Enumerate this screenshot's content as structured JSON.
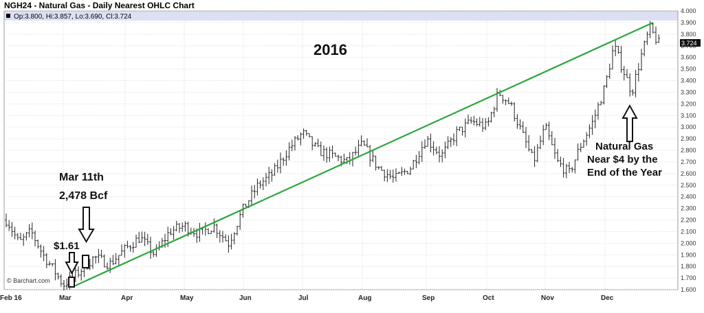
{
  "chart_data": {
    "type": "ohlc",
    "title": "NGH24 - Natural Gas - Daily Nearest OHLC Chart",
    "ohlc_label": "Op:3.800, Hi:3.857, Lo:3.690, Cl:3.724",
    "last_price": "3.724",
    "credit": "© Barchart.com",
    "ylim": [
      1.6,
      4.0
    ],
    "y_ticks": [
      "1.600",
      "1.700",
      "1.800",
      "1.900",
      "2.000",
      "2.100",
      "2.200",
      "2.300",
      "2.400",
      "2.500",
      "2.600",
      "2.700",
      "2.800",
      "2.900",
      "3.000",
      "3.100",
      "3.200",
      "3.300",
      "3.400",
      "3.500",
      "3.600",
      "3.700",
      "3.800",
      "3.900",
      "4.000"
    ],
    "x_labels": [
      "Feb 16",
      "Mar",
      "Apr",
      "May",
      "Jun",
      "Jul",
      "Aug",
      "Sep",
      "Oct",
      "Nov",
      "Dec"
    ],
    "trend_key_points": [
      {
        "label": "Mar",
        "value": 1.62
      },
      {
        "label": "Jun",
        "value": 2.3
      },
      {
        "label": "Aug",
        "value": 2.78
      },
      {
        "label": "Oct",
        "value": 3.35
      },
      {
        "label": "Dec",
        "value": 3.75
      },
      {
        "label": "end",
        "value": 3.9
      }
    ],
    "price_path": [
      {
        "label": "Feb 16",
        "value": 2.2
      },
      {
        "label": "Feb",
        "value": 2.0
      },
      {
        "label": "Feb",
        "value": 2.1
      },
      {
        "label": "Feb",
        "value": 1.9
      },
      {
        "label": "Feb",
        "value": 1.75
      },
      {
        "label": "Mar",
        "value": 1.64
      },
      {
        "label": "Mar",
        "value": 1.75
      },
      {
        "label": "Mar",
        "value": 1.88
      },
      {
        "label": "Mar",
        "value": 1.82
      },
      {
        "label": "Apr",
        "value": 1.95
      },
      {
        "label": "Apr",
        "value": 2.05
      },
      {
        "label": "Apr",
        "value": 1.9
      },
      {
        "label": "Apr",
        "value": 2.1
      },
      {
        "label": "May",
        "value": 2.15
      },
      {
        "label": "May",
        "value": 2.08
      },
      {
        "label": "May",
        "value": 2.15
      },
      {
        "label": "May",
        "value": 2.0
      },
      {
        "label": "Jun",
        "value": 2.3
      },
      {
        "label": "Jun",
        "value": 2.5
      },
      {
        "label": "Jun",
        "value": 2.6
      },
      {
        "label": "Jun",
        "value": 2.8
      },
      {
        "label": "Jul",
        "value": 2.95
      },
      {
        "label": "Jul",
        "value": 2.8
      },
      {
        "label": "Jul",
        "value": 2.75
      },
      {
        "label": "Jul",
        "value": 2.7
      },
      {
        "label": "Aug",
        "value": 2.85
      },
      {
        "label": "Aug",
        "value": 2.65
      },
      {
        "label": "Aug",
        "value": 2.55
      },
      {
        "label": "Aug",
        "value": 2.65
      },
      {
        "label": "Sep",
        "value": 2.9
      },
      {
        "label": "Sep",
        "value": 2.75
      },
      {
        "label": "Sep",
        "value": 2.95
      },
      {
        "label": "Sep",
        "value": 3.05
      },
      {
        "label": "Oct",
        "value": 3.0
      },
      {
        "label": "Oct",
        "value": 3.3
      },
      {
        "label": "Oct",
        "value": 3.2
      },
      {
        "label": "Oct",
        "value": 2.95
      },
      {
        "label": "Oct",
        "value": 2.7
      },
      {
        "label": "Nov",
        "value": 3.0
      },
      {
        "label": "Nov",
        "value": 2.7
      },
      {
        "label": "Nov",
        "value": 2.6
      },
      {
        "label": "Nov",
        "value": 2.85
      },
      {
        "label": "Nov",
        "value": 3.05
      },
      {
        "label": "Dec",
        "value": 3.35
      },
      {
        "label": "Dec",
        "value": 3.7
      },
      {
        "label": "Dec",
        "value": 3.5
      },
      {
        "label": "Dec",
        "value": 3.3
      },
      {
        "label": "Dec",
        "value": 3.6
      },
      {
        "label": "Dec",
        "value": 3.85
      },
      {
        "label": "end",
        "value": 3.72
      }
    ],
    "year_label": "2016",
    "annotations": {
      "mar11_line1": "Mar 11th",
      "mar11_line2": "2,478 Bcf",
      "low_price": "$1.61",
      "natgas_line1": "Natural Gas",
      "natgas_line2": "Near $4 by the",
      "natgas_line3": "End of the Year"
    },
    "colors": {
      "trend": "#2aa63a",
      "bars": "#222222",
      "header_band": "#dde0f4",
      "grid": "#d6d6d6"
    },
    "grid": true
  }
}
